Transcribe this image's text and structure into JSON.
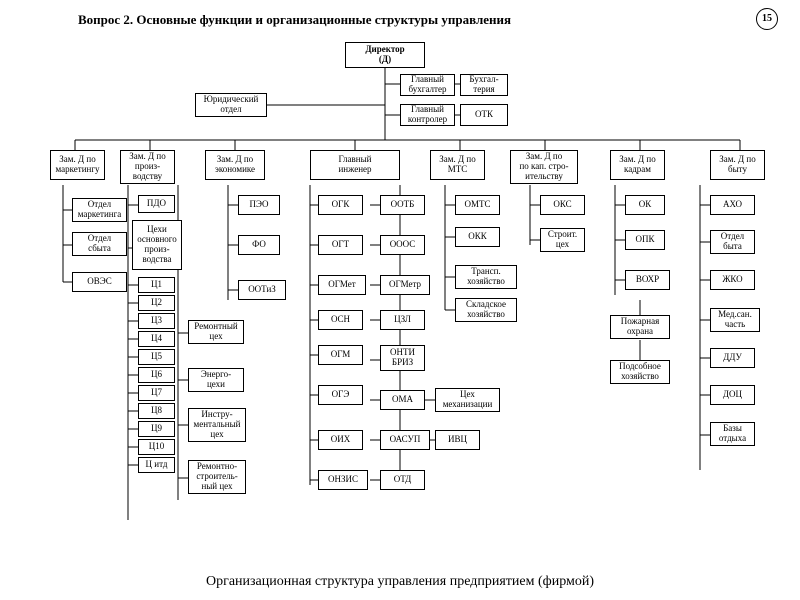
{
  "title": "Вопрос 2.   Основные функции и организационные структуры управления",
  "page_number": "15",
  "caption": "Организационная структура управления предприятием (фирмой)",
  "background_color": "#ffffff",
  "box_border_color": "#000000",
  "line_color": "#000000",
  "font_family": "Times New Roman",
  "nodes": {
    "director": "Директор\n(Д)",
    "legal": "Юридический\nотдел",
    "chief_acct": "Главный\nбухгалтер",
    "accounting": "Бухгал-\nтерия",
    "chief_ctrl": "Главный\nконтролер",
    "otk": "ОТК",
    "zam_marketing": "Зам. Д по\nмаркетингу",
    "zam_proizv": "Зам. Д по\nпроиз-\nводству",
    "zam_econ": "Зам. Д по\nэкономике",
    "chief_eng": "Главный\nинженер",
    "zam_mts": "Зам. Д по\nМТС",
    "zam_kap": "Зам. Д по\nпо кап. стро-\nительству",
    "zam_kadr": "Зам. Д по\nкадрам",
    "zam_byt": "Зам. Д по\nбыту",
    "otdel_mkt": "Отдел\nмаркетинга",
    "otdel_sbyt": "Отдел\nсбыта",
    "oves": "ОВЭС",
    "pdo": "ПДО",
    "cehi": "Цехи\nосновного\nпроиз-\nводства",
    "c1": "Ц1",
    "c2": "Ц2",
    "c3": "Ц3",
    "c4": "Ц4",
    "c5": "Ц5",
    "c6": "Ц6",
    "c7": "Ц7",
    "c8": "Ц8",
    "c9": "Ц9",
    "c10": "Ц10",
    "citd": "Ц итд",
    "remont": "Ремонтный\nцех",
    "energo": "Энерго-\nцехи",
    "instrum": "Инстру-\nментальный\nцех",
    "remstroy": "Ремонтно-\nстроитель-\nный цех",
    "peo": "ПЭО",
    "fo": "ФО",
    "ootiz": "ООТиЗ",
    "ogk": "ОГК",
    "ogt": "ОГТ",
    "ogmet": "ОГМет",
    "osn": "ОСН",
    "ogm": "ОГМ",
    "oge": "ОГЭ",
    "oih": "ОИХ",
    "onzis": "ОНЗИС",
    "ootb": "ООТБ",
    "ooos": "ОООС",
    "ogmetr": "ОГМетр",
    "czl": "ЦЗЛ",
    "onti": "ОНТИ\nБРИЗ",
    "oma": "ОМА",
    "oasup": "ОАСУП",
    "otd": "ОТД",
    "ceh_meh": "Цех\nмеханизации",
    "ivc": "ИВЦ",
    "omts": "ОМТС",
    "okk": "ОКК",
    "transp": "Трансп.\nхозяйство",
    "sklad": "Складское\nхозяйство",
    "oks": "ОКС",
    "stroy": "Строит.\nцех",
    "ok": "ОК",
    "opk": "ОПК",
    "vohr": "ВОХР",
    "pozhar": "Пожарная\nохрана",
    "podsob": "Подсобное\nхозяйство",
    "aho": "АХО",
    "otdel_byt": "Отдел\nбыта",
    "zhko": "ЖКО",
    "medsan": "Мед.сан.\nчасть",
    "ddu": "ДДУ",
    "doc": "ДОЦ",
    "bazy": "Базы\nотдыха"
  }
}
